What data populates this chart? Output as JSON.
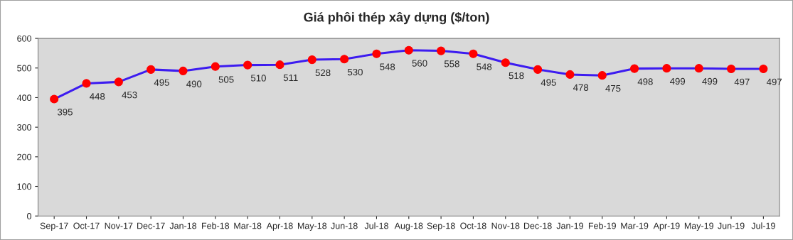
{
  "chart_data": {
    "type": "line",
    "title": "Giá phôi thép xây dựng ($/ton)",
    "categories": [
      "Sep-17",
      "Oct-17",
      "Nov-17",
      "Dec-17",
      "Jan-18",
      "Feb-18",
      "Mar-18",
      "Apr-18",
      "May-18",
      "Jun-18",
      "Jul-18",
      "Aug-18",
      "Sep-18",
      "Oct-18",
      "Nov-18",
      "Dec-18",
      "Jan-19",
      "Feb-19",
      "Mar-19",
      "Apr-19",
      "May-19",
      "Jun-19",
      "Jul-19"
    ],
    "series": [
      {
        "color": "#3d1cf0",
        "values": [
          395,
          448,
          453,
          495,
          490,
          505,
          510,
          511,
          528,
          530,
          548,
          560,
          558,
          548,
          518,
          495,
          478,
          475,
          498,
          499,
          499,
          497,
          497
        ]
      }
    ],
    "ylim": [
      0,
      600
    ],
    "yticks": [
      0,
      100,
      200,
      300,
      400,
      500,
      600
    ],
    "marker": "circle",
    "data_labels": true,
    "grid": false
  }
}
